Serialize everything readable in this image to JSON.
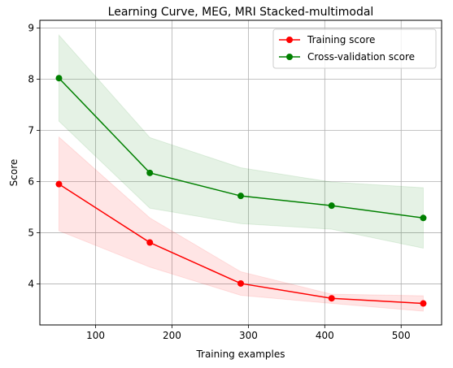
{
  "chart_data": {
    "type": "line",
    "title": "Learning Curve, MEG, MRI Stacked-multimodal",
    "xlabel": "Training examples",
    "ylabel": "Score",
    "xlim": [
      27,
      553
    ],
    "ylim": [
      3.2,
      9.15
    ],
    "xticks": [
      100,
      200,
      300,
      400,
      500
    ],
    "yticks": [
      4,
      5,
      6,
      7,
      8,
      9
    ],
    "grid": true,
    "legend_position": "top-right",
    "x": [
      52,
      171,
      290,
      409,
      529
    ],
    "series": [
      {
        "name": "Training score",
        "color": "#ff0000",
        "fill": "#ff0000",
        "values": [
          5.95,
          4.81,
          4.01,
          3.72,
          3.62
        ],
        "lower": [
          5.04,
          4.33,
          3.78,
          3.62,
          3.47
        ],
        "upper": [
          6.87,
          5.29,
          4.24,
          3.8,
          3.77
        ]
      },
      {
        "name": "Cross-validation score",
        "color": "#008000",
        "fill": "#008000",
        "values": [
          8.02,
          6.17,
          5.72,
          5.53,
          5.29
        ],
        "lower": [
          7.18,
          5.48,
          5.18,
          5.07,
          4.7
        ],
        "upper": [
          8.86,
          6.86,
          6.27,
          5.99,
          5.88
        ]
      }
    ]
  }
}
